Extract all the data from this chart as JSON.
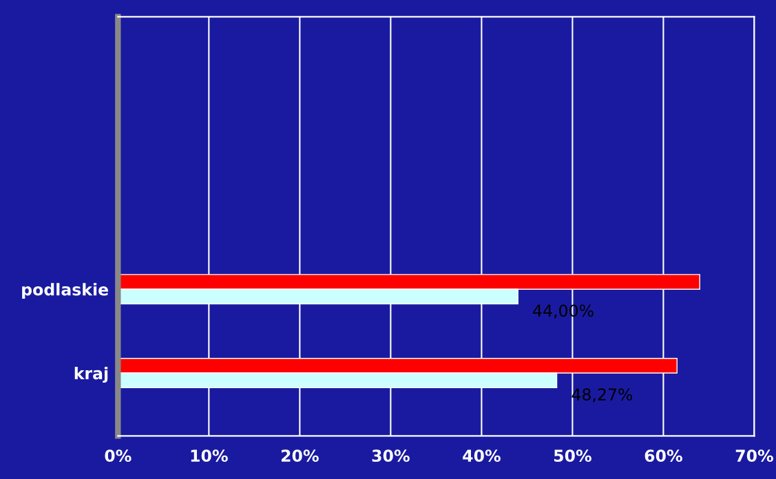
{
  "chart_data": {
    "type": "bar",
    "orientation": "horizontal",
    "categories": [
      null,
      null,
      null,
      null,
      null,
      null,
      "podlaskie",
      null,
      "kraj",
      null
    ],
    "series": [
      {
        "color": "#ff0000",
        "values": [
          null,
          null,
          null,
          null,
          null,
          null,
          64,
          null,
          61.5,
          null
        ]
      },
      {
        "color": "#ccffff",
        "values": [
          null,
          null,
          null,
          null,
          null,
          null,
          44.0,
          null,
          48.27,
          null
        ],
        "value_labels": [
          null,
          null,
          null,
          null,
          null,
          null,
          "44,00%",
          null,
          "48,27%",
          null
        ]
      }
    ],
    "xlim": [
      0,
      70
    ],
    "xticks": [
      {
        "value": 0,
        "label": "0%"
      },
      {
        "value": 10,
        "label": "10%"
      },
      {
        "value": 20,
        "label": "20%"
      },
      {
        "value": 30,
        "label": "30%"
      },
      {
        "value": 40,
        "label": "40%"
      },
      {
        "value": 50,
        "label": "50%"
      },
      {
        "value": 60,
        "label": "60%"
      },
      {
        "value": 70,
        "label": "70%"
      }
    ],
    "grid": "x"
  }
}
